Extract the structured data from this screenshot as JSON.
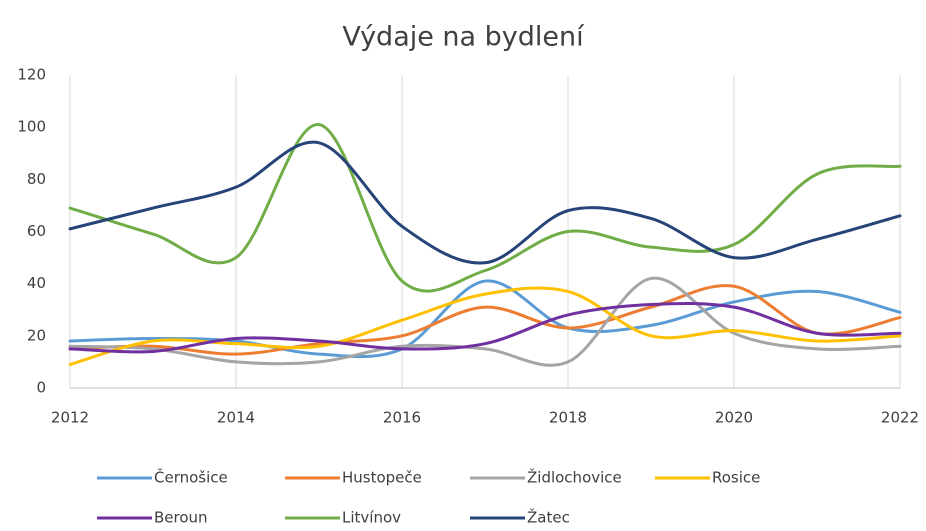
{
  "chart_data": {
    "type": "line",
    "title": "Výdaje na bydlení",
    "x": [
      2012,
      2013,
      2014,
      2015,
      2016,
      2017,
      2018,
      2019,
      2020,
      2021,
      2022
    ],
    "series": [
      {
        "name": "Černošice",
        "color": "#5b9bd5",
        "values": [
          18,
          19,
          18,
          13,
          15,
          41,
          23,
          24,
          33,
          37,
          29
        ]
      },
      {
        "name": "Hustopeče",
        "color": "#ed7d31",
        "values": [
          15,
          16,
          13,
          17,
          20,
          31,
          23,
          31,
          39,
          21,
          27
        ]
      },
      {
        "name": "Židlochovice",
        "color": "#a5a5a5",
        "values": [
          16,
          15,
          10,
          10,
          16,
          15,
          10,
          42,
          21,
          15,
          16
        ]
      },
      {
        "name": "Rosice",
        "color": "#ffc000",
        "values": [
          9,
          18,
          17,
          16,
          26,
          36,
          37,
          20,
          22,
          18,
          20
        ]
      },
      {
        "name": "Beroun",
        "color": "#7030a0",
        "values": [
          15,
          14,
          19,
          18,
          15,
          17,
          28,
          32,
          31,
          21,
          21
        ]
      },
      {
        "name": "Litvínov",
        "color": "#70ad47",
        "values": [
          69,
          59,
          50,
          101,
          41,
          45,
          60,
          54,
          55,
          82,
          85
        ]
      },
      {
        "name": "Žatec",
        "color": "#264478",
        "values": [
          61,
          69,
          77,
          94,
          62,
          48,
          68,
          65,
          50,
          57,
          66
        ]
      }
    ],
    "xlim": [
      2012,
      2022
    ],
    "xticks": [
      2012,
      2014,
      2016,
      2018,
      2020,
      2022
    ],
    "ylim": [
      0,
      120
    ],
    "yticks": [
      0,
      20,
      40,
      60,
      80,
      100,
      120
    ],
    "grid": true,
    "smooth": true,
    "legend": "bottom"
  }
}
